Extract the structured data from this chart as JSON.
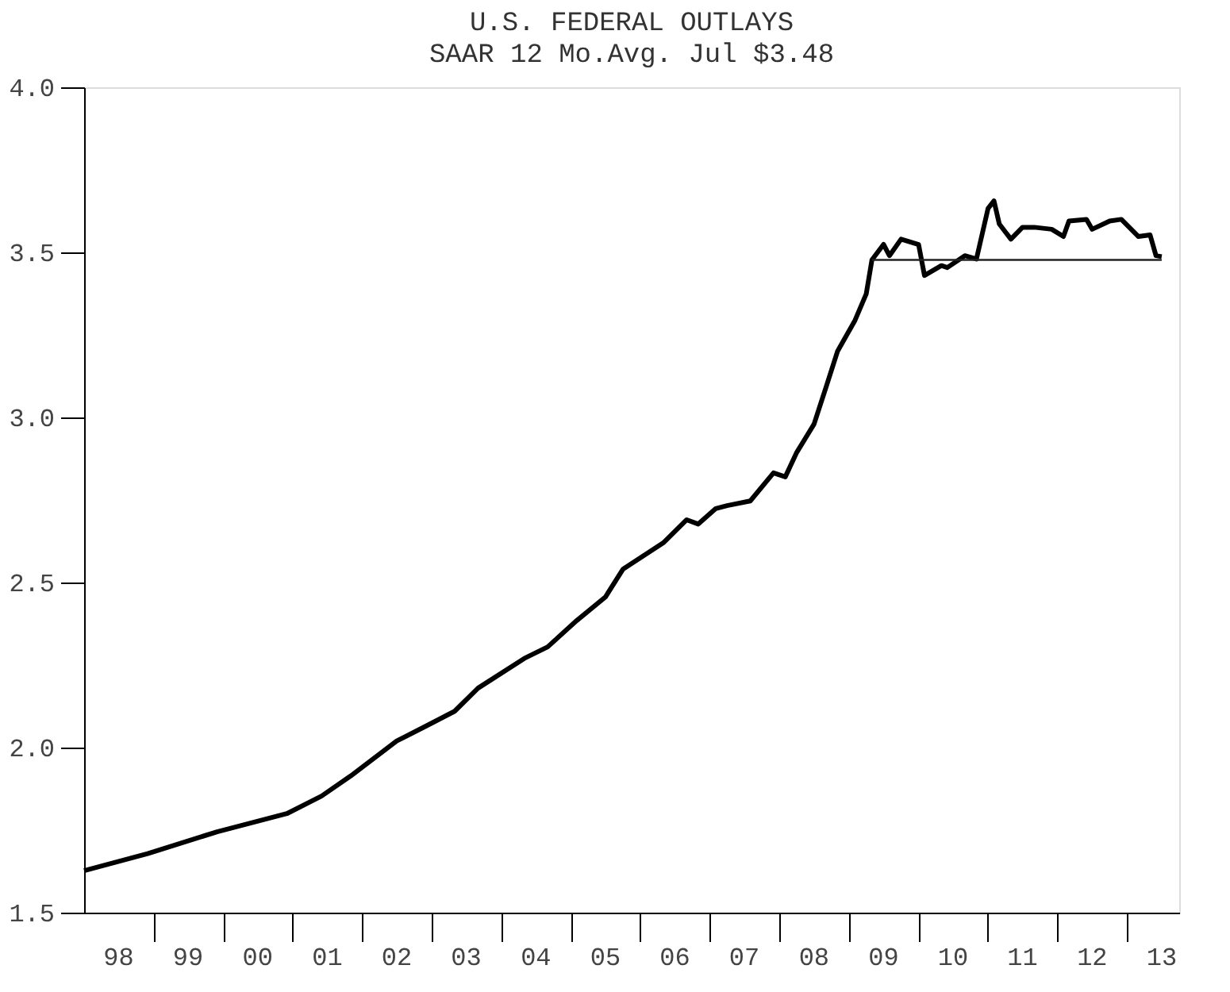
{
  "chart_data": {
    "type": "line",
    "title": "U.S. FEDERAL OUTLAYS",
    "subtitle": "SAAR 12 Mo.Avg.   Jul $3.48",
    "xlim": [
      "1998-01",
      "2013-10"
    ],
    "ylim": [
      1.5,
      4.0
    ],
    "yticks": [
      {
        "value": 1.5,
        "label": "1.5"
      },
      {
        "value": 2.0,
        "label": "2.0"
      },
      {
        "value": 2.5,
        "label": "2.5"
      },
      {
        "value": 3.0,
        "label": "3.0"
      },
      {
        "value": 3.5,
        "label": "3.5"
      },
      {
        "value": 4.0,
        "label": "4.0"
      }
    ],
    "xticks": [
      {
        "value": "1998-07",
        "label": "98"
      },
      {
        "value": "1999-07",
        "label": "99"
      },
      {
        "value": "2000-07",
        "label": "00"
      },
      {
        "value": "2001-07",
        "label": "01"
      },
      {
        "value": "2002-07",
        "label": "02"
      },
      {
        "value": "2003-07",
        "label": "03"
      },
      {
        "value": "2004-07",
        "label": "04"
      },
      {
        "value": "2005-07",
        "label": "05"
      },
      {
        "value": "2006-07",
        "label": "06"
      },
      {
        "value": "2007-07",
        "label": "07"
      },
      {
        "value": "2008-07",
        "label": "08"
      },
      {
        "value": "2009-07",
        "label": "09"
      },
      {
        "value": "2010-07",
        "label": "10"
      },
      {
        "value": "2011-07",
        "label": "11"
      },
      {
        "value": "2012-07",
        "label": "12"
      },
      {
        "value": "2013-07",
        "label": "13"
      }
    ],
    "grid": false,
    "line_style": "solid",
    "series": [
      {
        "color": "#000000",
        "x": [
          "1998-01",
          "1998-12",
          "1999-12",
          "2000-12",
          "2001-06",
          "2001-11",
          "2002-07",
          "2002-12",
          "2003-05",
          "2003-09",
          "2004-05",
          "2004-09",
          "2005-02",
          "2005-07",
          "2005-10",
          "2006-05",
          "2006-09",
          "2006-11",
          "2007-02",
          "2007-04",
          "2007-08",
          "2007-12",
          "2008-02",
          "2008-04",
          "2008-07",
          "2008-09",
          "2008-11",
          "2009-02",
          "2009-04",
          "2009-05",
          "2009-07",
          "2009-08",
          "2009-10",
          "2010-01",
          "2010-02",
          "2010-05",
          "2010-06",
          "2010-09",
          "2010-11",
          "2011-01",
          "2011-02",
          "2011-03",
          "2011-05",
          "2011-07",
          "2011-09",
          "2011-12",
          "2012-02",
          "2012-03",
          "2012-06",
          "2012-07",
          "2012-10",
          "2012-12",
          "2013-03",
          "2013-05",
          "2013-06",
          "2013-07"
        ],
        "values": [
          1.627,
          1.679,
          1.745,
          1.8,
          1.853,
          1.914,
          2.02,
          2.065,
          2.11,
          2.18,
          2.27,
          2.305,
          2.385,
          2.456,
          2.54,
          2.62,
          2.69,
          2.677,
          2.724,
          2.733,
          2.747,
          2.832,
          2.82,
          2.894,
          2.98,
          3.09,
          3.2,
          3.294,
          3.374,
          3.477,
          3.524,
          3.49,
          3.54,
          3.524,
          3.43,
          3.46,
          3.454,
          3.49,
          3.48,
          3.633,
          3.656,
          3.586,
          3.54,
          3.576,
          3.576,
          3.57,
          3.548,
          3.595,
          3.6,
          3.57,
          3.595,
          3.6,
          3.548,
          3.553,
          3.49,
          3.487
        ]
      },
      {
        "color": "#222222",
        "x": [
          "2009-05",
          "2013-07"
        ],
        "values": [
          3.477,
          3.477
        ]
      }
    ]
  }
}
